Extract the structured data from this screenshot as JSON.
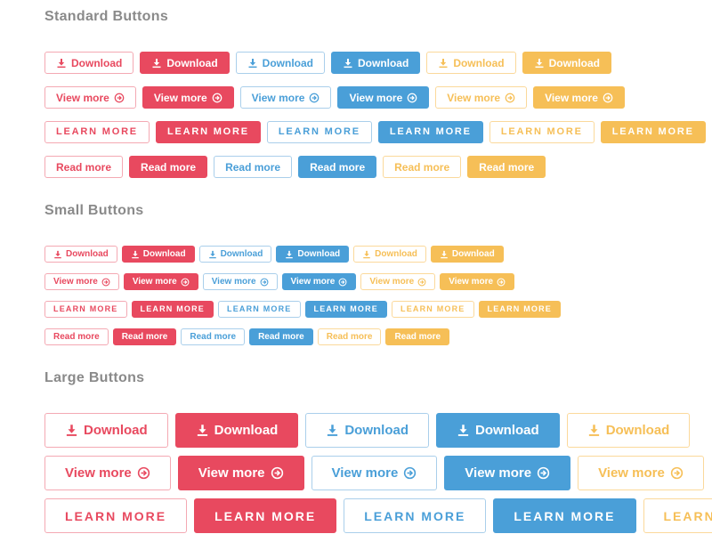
{
  "page": {
    "background": "#ffffff"
  },
  "colors": {
    "red": "#e8495f",
    "red_outline_border": "#f4a9b3",
    "blue": "#4a9fd8",
    "blue_outline_border": "#aacfeb",
    "yellow": "#f6bf57",
    "yellow_outline_border": "#fbd99b",
    "solid_button_text": "#ffffff",
    "heading_text": "#8a8a8a"
  },
  "button_labels": {
    "download": "Download",
    "view_more": "View more ",
    "learn_more": "LEARN MORE",
    "read_more": "Read more"
  },
  "icon_names": {
    "download": "download-icon",
    "view_more": "arrow-circle-right-icon"
  },
  "sections": [
    {
      "title": "Standard Buttons",
      "size": "standard",
      "rows": [
        {
          "label_key": "download",
          "icon": "download",
          "icon_position": "before",
          "variants": [
            "red-outline",
            "red-solid",
            "blue-outline",
            "blue-solid",
            "yellow-outline",
            "yellow-solid"
          ]
        },
        {
          "label_key": "view_more",
          "icon": "view_more",
          "icon_position": "after",
          "variants": [
            "red-outline",
            "red-solid",
            "blue-outline",
            "blue-solid",
            "yellow-outline",
            "yellow-solid"
          ]
        },
        {
          "label_key": "learn_more",
          "icon": null,
          "icon_position": null,
          "variants": [
            "red-outline",
            "red-solid",
            "blue-outline",
            "blue-solid",
            "yellow-outline",
            "yellow-solid"
          ]
        },
        {
          "label_key": "read_more",
          "icon": null,
          "icon_position": null,
          "variants": [
            "red-outline",
            "red-solid",
            "blue-outline",
            "blue-solid",
            "yellow-outline",
            "yellow-solid"
          ]
        }
      ]
    },
    {
      "title": "Small Buttons",
      "size": "small",
      "rows": [
        {
          "label_key": "download",
          "icon": "download",
          "icon_position": "before",
          "variants": [
            "red-outline",
            "red-solid",
            "blue-outline",
            "blue-solid",
            "yellow-outline",
            "yellow-solid"
          ]
        },
        {
          "label_key": "view_more",
          "icon": "view_more",
          "icon_position": "after",
          "variants": [
            "red-outline",
            "red-solid",
            "blue-outline",
            "blue-solid",
            "yellow-outline",
            "yellow-solid"
          ]
        },
        {
          "label_key": "learn_more",
          "icon": null,
          "icon_position": null,
          "variants": [
            "red-outline",
            "red-solid",
            "blue-outline",
            "blue-solid",
            "yellow-outline",
            "yellow-solid"
          ]
        },
        {
          "label_key": "read_more",
          "icon": null,
          "icon_position": null,
          "variants": [
            "red-outline",
            "red-solid",
            "blue-outline",
            "blue-solid",
            "yellow-outline",
            "yellow-solid"
          ]
        }
      ]
    },
    {
      "title": "Large Buttons",
      "size": "large",
      "rows": [
        {
          "label_key": "download",
          "icon": "download",
          "icon_position": "before",
          "variants": [
            "red-outline",
            "red-solid",
            "blue-outline",
            "blue-solid",
            "yellow-outline"
          ]
        },
        {
          "label_key": "view_more",
          "icon": "view_more",
          "icon_position": "after",
          "variants": [
            "red-outline",
            "red-solid",
            "blue-outline",
            "blue-solid",
            "yellow-outline"
          ]
        },
        {
          "label_key": "learn_more",
          "icon": null,
          "icon_position": null,
          "variants": [
            "red-outline",
            "red-solid",
            "blue-outline",
            "blue-solid",
            "yellow-outline"
          ]
        }
      ]
    }
  ]
}
